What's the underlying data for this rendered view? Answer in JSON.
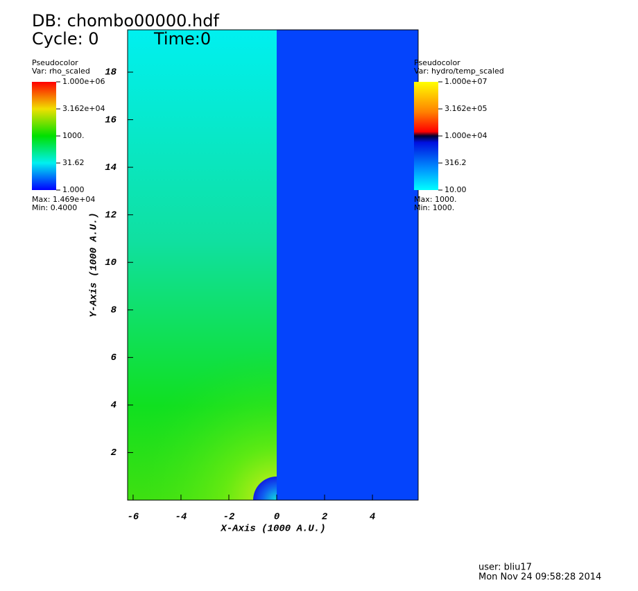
{
  "chart_data": {
    "type": "pseudocolor",
    "db": "DB: chombo00000.hdf",
    "cycle": "Cycle: 0",
    "time": "Time:0",
    "x_label": "X-Axis (1000 A.U.)",
    "y_label": "Y-Axis (1000 A.U.)",
    "xlim": [
      -6.23,
      5.91
    ],
    "ylim": [
      0,
      19.78
    ],
    "xticks": [
      -6,
      -4,
      -2,
      0,
      2,
      4
    ],
    "yticks": [
      2,
      4,
      6,
      8,
      10,
      12,
      14,
      16,
      18
    ],
    "legends": [
      {
        "title": "Pseudocolor",
        "var": "Var: rho_scaled",
        "labels": [
          "1.000e+06",
          "3.162e+04",
          "1000.",
          "31.62",
          "1.000"
        ],
        "max": "Max: 1.469e+04",
        "min": "Min: 0.4000"
      },
      {
        "title": "Pseudocolor",
        "var": "Var: hydro/temp_scaled",
        "labels": [
          "1.000e+07",
          "3.162e+05",
          "1.000e+04",
          "316.2",
          "10.00"
        ],
        "max": "Max: 1000.",
        "min": "Min: 1000."
      }
    ],
    "user": "user: bliu17",
    "date": "Mon Nov 24 09:58:28 2014"
  }
}
